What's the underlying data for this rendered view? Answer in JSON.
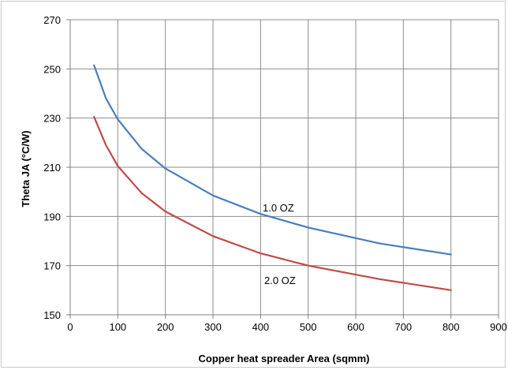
{
  "chart_data": {
    "type": "line",
    "title": "",
    "xlabel": "Copper heat spreader Area (sqmm)",
    "ylabel": "Theta JA (°C/W)",
    "xlim": [
      0,
      900
    ],
    "ylim": [
      150,
      270
    ],
    "xticks": [
      0,
      100,
      200,
      300,
      400,
      500,
      600,
      700,
      800,
      900
    ],
    "yticks": [
      150,
      170,
      190,
      210,
      230,
      250,
      270
    ],
    "grid": true,
    "legend": "none",
    "series": [
      {
        "name": "1.0 OZ",
        "color": "#4a7ebb",
        "x": [
          50,
          75,
          100,
          150,
          200,
          300,
          400,
          500,
          650,
          800
        ],
        "y": [
          251.5,
          238,
          229.5,
          217.5,
          209.5,
          198.5,
          191,
          185.5,
          179,
          174.5
        ]
      },
      {
        "name": "2.0 OZ",
        "color": "#be4b48",
        "x": [
          50,
          75,
          100,
          150,
          200,
          300,
          400,
          500,
          650,
          800
        ],
        "y": [
          230.5,
          219,
          210.5,
          199.5,
          192,
          182,
          175,
          170,
          164.5,
          160
        ]
      }
    ]
  }
}
